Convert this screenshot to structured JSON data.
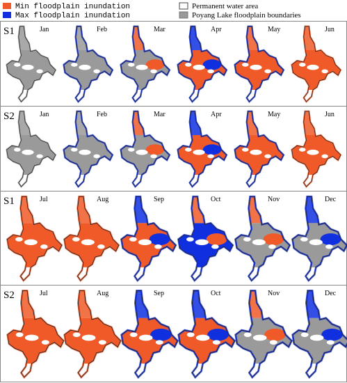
{
  "legend": {
    "items": [
      "Min floodplain inundation",
      "Max floodplain inundation",
      "Permanent water area",
      "Poyang Lake floodplain boundaries"
    ]
  },
  "panels": [
    {
      "label": "S1",
      "months": [
        "Jan",
        "Feb",
        "Mar",
        "Apr",
        "May",
        "Jun"
      ]
    },
    {
      "label": "S2",
      "months": [
        "Jan",
        "Feb",
        "Mar",
        "Apr",
        "May",
        "Jun"
      ]
    },
    {
      "label": "S1",
      "months": [
        "Jul",
        "Aug",
        "Sep",
        "Oct",
        "Nov",
        "Dec"
      ]
    },
    {
      "label": "S2",
      "months": [
        "Jul",
        "Aug",
        "Sep",
        "Oct",
        "Nov",
        "Dec"
      ]
    }
  ]
}
